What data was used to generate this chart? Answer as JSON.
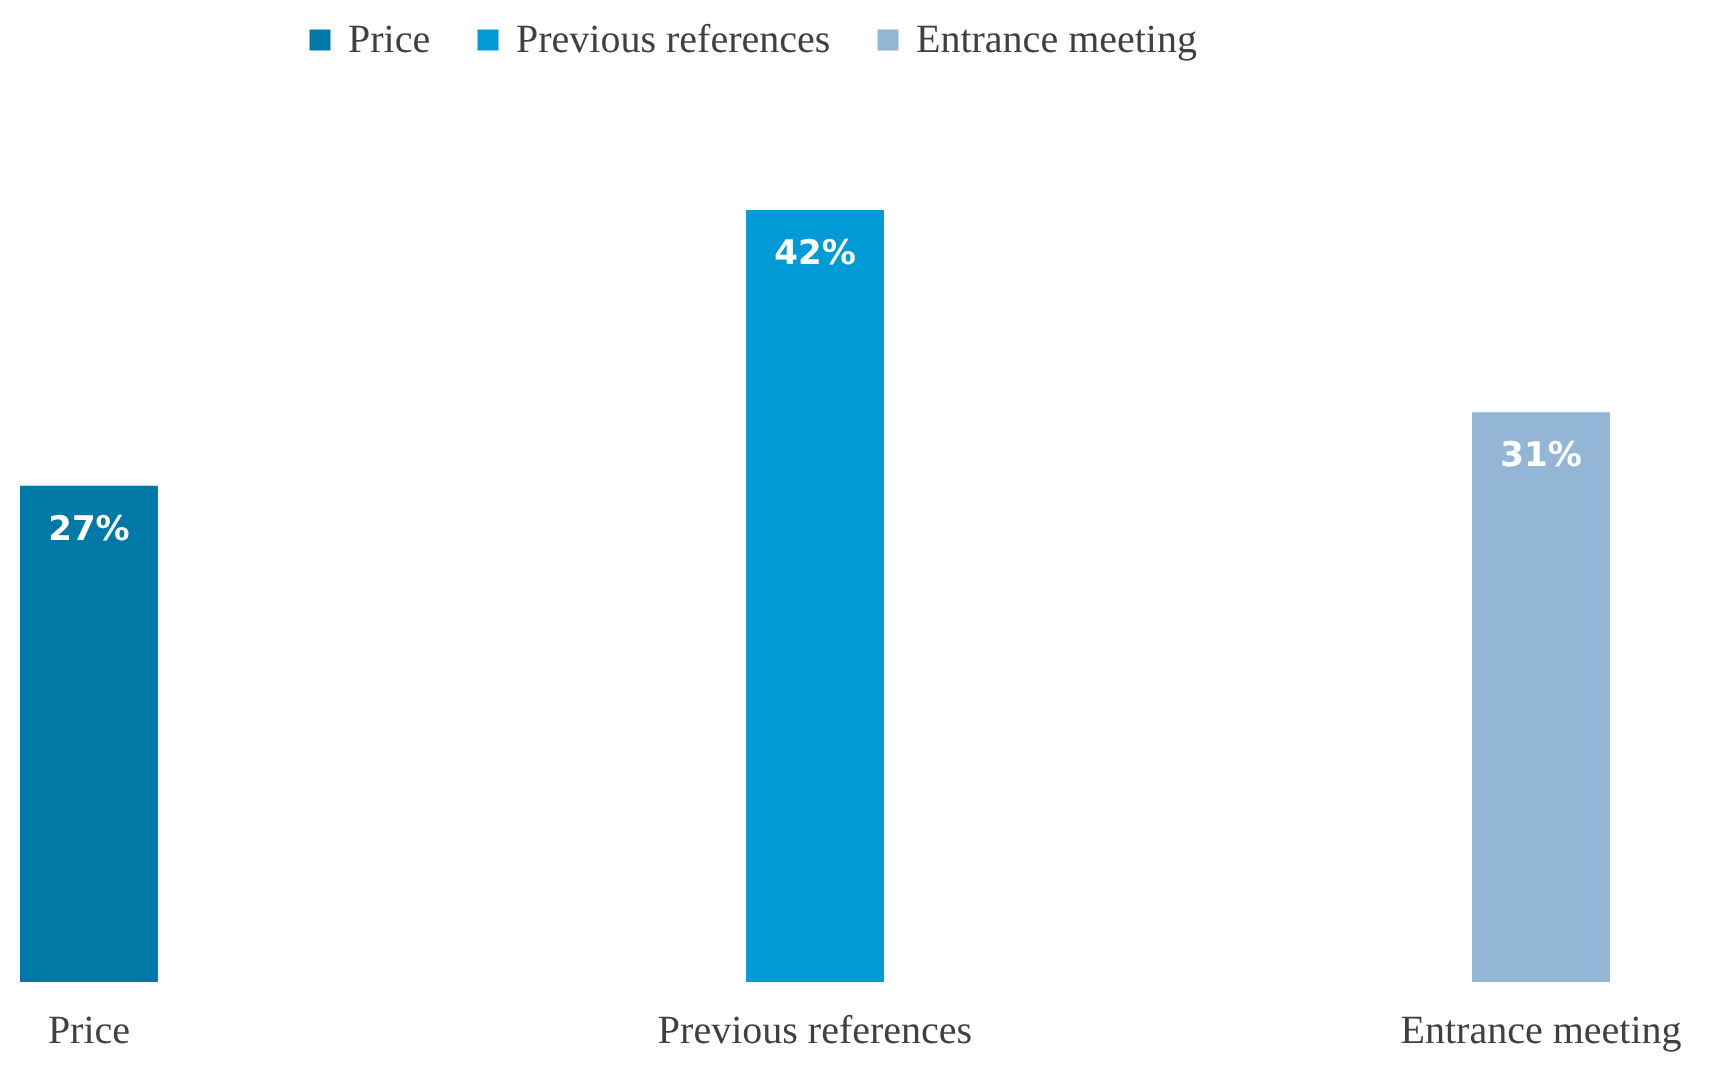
{
  "chart_data": {
    "type": "bar",
    "categories": [
      "Price",
      "Previous references",
      "Entrance meeting"
    ],
    "series": [
      {
        "name": "Price",
        "color": "#0079a6",
        "values": [
          27,
          null,
          null
        ],
        "value_labels": [
          "27%",
          null,
          null
        ]
      },
      {
        "name": "Previous references",
        "color": "#009bd6",
        "values": [
          null,
          42,
          null
        ],
        "value_labels": [
          null,
          "42%",
          null
        ]
      },
      {
        "name": "Entrance meeting",
        "color": "#93b6d6",
        "values": [
          null,
          null,
          31
        ],
        "value_labels": [
          null,
          null,
          "31%"
        ]
      }
    ],
    "legend": "top"
  }
}
